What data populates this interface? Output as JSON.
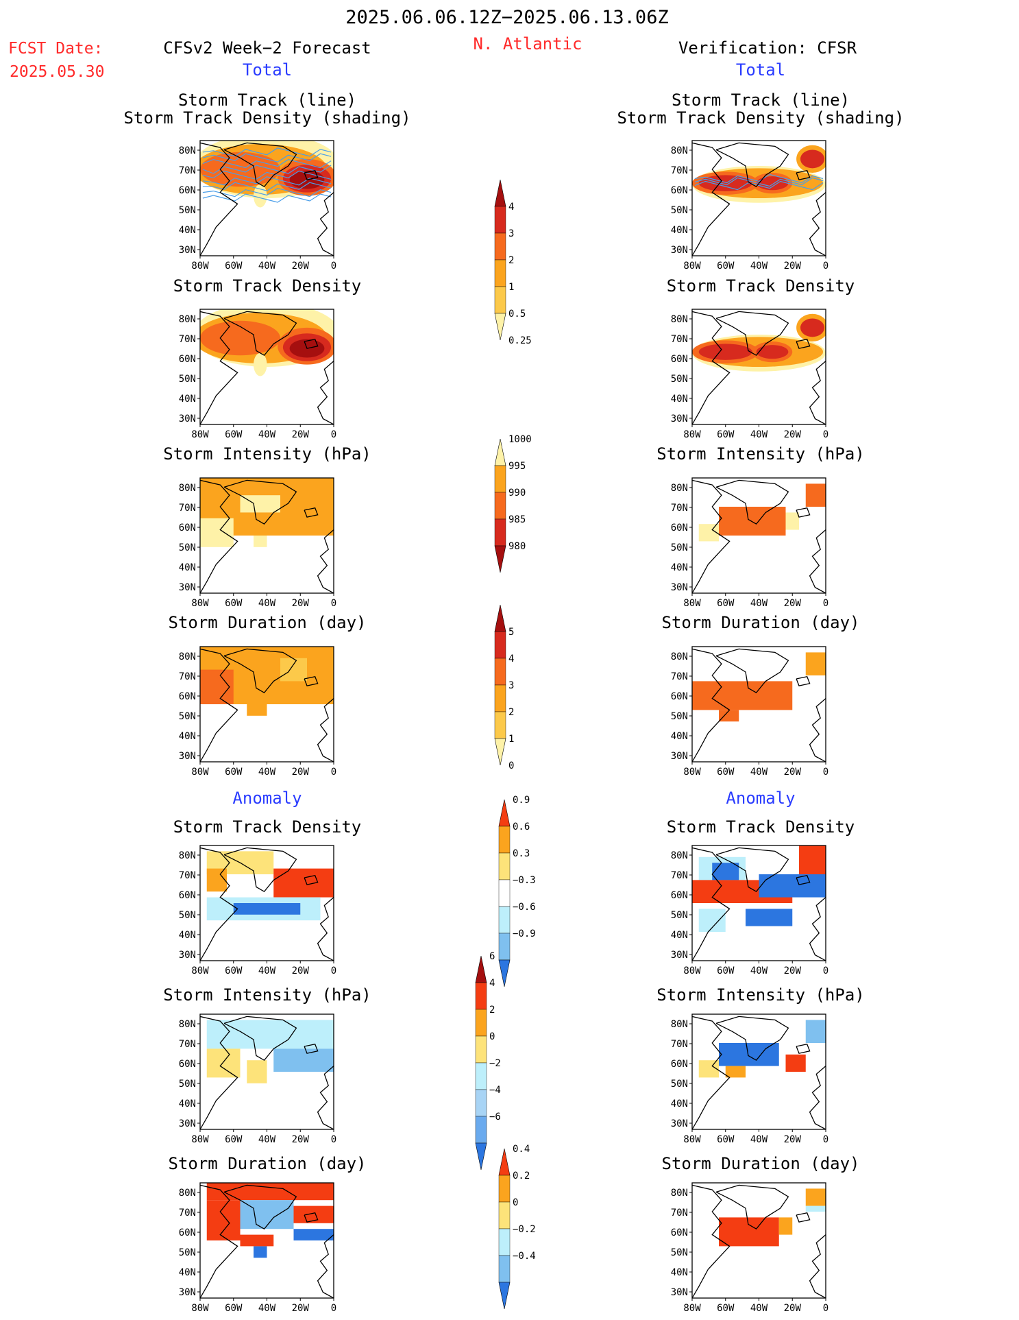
{
  "header": {
    "period": "2025.06.06.12Z−2025.06.13.06Z",
    "fcst_label": "FCST Date:",
    "fcst_date": "2025.05.30",
    "model_title": "CFSv2 Week−2 Forecast",
    "region": "N. Atlantic",
    "verification_title": "Verification: CFSR"
  },
  "sections": {
    "total": "Total",
    "anomaly": "Anomaly"
  },
  "panel_titles": {
    "track_line": "Storm Track (line)",
    "track_shading": "Storm Track Density (shading)",
    "density": "Storm Track Density",
    "intensity": "Storm Intensity (hPa)",
    "duration": "Storm Duration (day)"
  },
  "axes": {
    "x_ticks": [
      "80W",
      "60W",
      "40W",
      "20W",
      "0"
    ],
    "y_ticks": [
      "80N",
      "70N",
      "60N",
      "50N",
      "40N",
      "30N"
    ]
  },
  "colors": {
    "title_red": "#ff2a2a",
    "section_blue": "#2a3cff",
    "track_line": "#4a9ee8"
  },
  "chart_data": [
    {
      "type": "heatmap",
      "panel": "forecast-total-track",
      "description": "shaded density with track lines",
      "colorbar": "density_total"
    },
    {
      "type": "heatmap",
      "panel": "forecast-total-density",
      "colorbar": "density_total"
    },
    {
      "type": "heatmap",
      "panel": "forecast-total-intensity",
      "colorbar": "intensity_total"
    },
    {
      "type": "heatmap",
      "panel": "forecast-total-duration",
      "colorbar": "duration_total"
    },
    {
      "type": "heatmap",
      "panel": "forecast-anomaly-density",
      "colorbar": "density_anomaly"
    },
    {
      "type": "heatmap",
      "panel": "forecast-anomaly-intensity",
      "colorbar": "intensity_anomaly"
    },
    {
      "type": "heatmap",
      "panel": "forecast-anomaly-duration",
      "colorbar": "duration_anomaly"
    },
    {
      "type": "heatmap",
      "panel": "verification-total-track",
      "colorbar": "density_total"
    },
    {
      "type": "heatmap",
      "panel": "verification-total-density",
      "colorbar": "density_total"
    },
    {
      "type": "heatmap",
      "panel": "verification-total-intensity",
      "colorbar": "intensity_total"
    },
    {
      "type": "heatmap",
      "panel": "verification-total-duration",
      "colorbar": "duration_total"
    },
    {
      "type": "heatmap",
      "panel": "verification-anomaly-density",
      "colorbar": "density_anomaly"
    },
    {
      "type": "heatmap",
      "panel": "verification-anomaly-intensity",
      "colorbar": "intensity_anomaly"
    },
    {
      "type": "heatmap",
      "panel": "verification-anomaly-duration",
      "colorbar": "duration_anomaly"
    }
  ],
  "colorbars": {
    "density_total": {
      "labels": [
        "4",
        "3",
        "2",
        "1",
        "0.5",
        "0.25"
      ],
      "colors": [
        "#a50f0f",
        "#d72a1e",
        "#f66a1e",
        "#fba41e",
        "#fcc94a",
        "#fef2a8"
      ]
    },
    "intensity_total": {
      "labels": [
        "1000",
        "995",
        "990",
        "985",
        "980"
      ],
      "colors": [
        "#fef2a8",
        "#fba41e",
        "#f66a1e",
        "#d72a1e",
        "#a50f0f"
      ]
    },
    "duration_total": {
      "labels": [
        "5",
        "4",
        "3",
        "2",
        "1",
        "0"
      ],
      "colors": [
        "#a50f0f",
        "#d72a1e",
        "#f66a1e",
        "#fba41e",
        "#fcc94a",
        "#fef2a8"
      ]
    },
    "density_anomaly": {
      "labels": [
        "0.9",
        "0.6",
        "0.3",
        "−0.3",
        "−0.6",
        "−0.9"
      ],
      "colors": [
        "#f43d12",
        "#fba41e",
        "#fde37a",
        "#ffffff",
        "#bdeffb",
        "#7fc0ef",
        "#2c76e0"
      ]
    },
    "intensity_anomaly": {
      "labels": [
        "6",
        "4",
        "2",
        "0",
        "−2",
        "−4",
        "−6"
      ],
      "colors": [
        "#a50f0f",
        "#f43d12",
        "#fba41e",
        "#fde37a",
        "#bdeffb",
        "#a8d4f5",
        "#6aaaee",
        "#2c76e0"
      ]
    },
    "duration_anomaly": {
      "labels": [
        "0.4",
        "0.2",
        "0",
        "−0.2",
        "−0.4"
      ],
      "colors": [
        "#f43d12",
        "#fba41e",
        "#fde37a",
        "#bdeffb",
        "#7fc0ef",
        "#2c76e0"
      ]
    }
  }
}
